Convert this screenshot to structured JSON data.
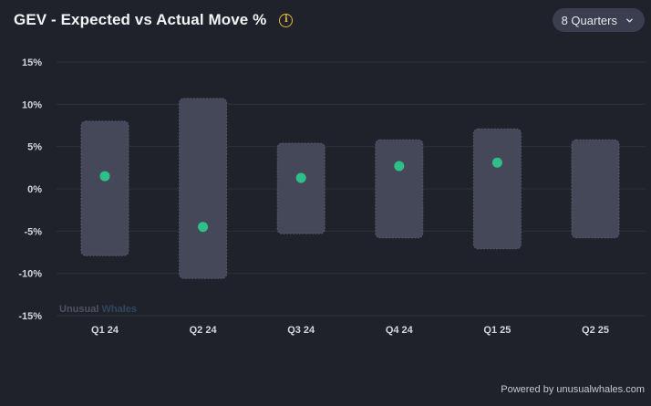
{
  "header": {
    "title": "GEV - Expected vs Actual Move %",
    "dropdown_label": "8 Quarters"
  },
  "watermark": {
    "part1": "Unusual",
    "part2": "Whales"
  },
  "footer": {
    "powered_by": "Powered by unusualwhales.com"
  },
  "colors": {
    "background": "#1f222b",
    "range_bar": "#454858",
    "actual_dot": "#2fbf88",
    "grid": "#2c303b",
    "info_icon": "#e8b93a"
  },
  "chart_data": {
    "type": "range-dot",
    "categories": [
      "Q1 24",
      "Q2 24",
      "Q3 24",
      "Q4 24",
      "Q1 25",
      "Q2 25"
    ],
    "expected_low": [
      -7.9,
      -10.6,
      -5.3,
      -5.8,
      -7.1,
      -5.8
    ],
    "expected_high": [
      8.0,
      10.7,
      5.4,
      5.8,
      7.1,
      5.8
    ],
    "actual": [
      1.5,
      -4.5,
      1.3,
      2.7,
      3.1,
      null
    ],
    "ylim": [
      -15,
      15
    ],
    "yticks": [
      15,
      10,
      5,
      0,
      -5,
      -10,
      -15
    ],
    "ytick_labels": [
      "15%",
      "10%",
      "5%",
      "0%",
      "-5%",
      "-10%",
      "-15%"
    ],
    "grid": true
  }
}
